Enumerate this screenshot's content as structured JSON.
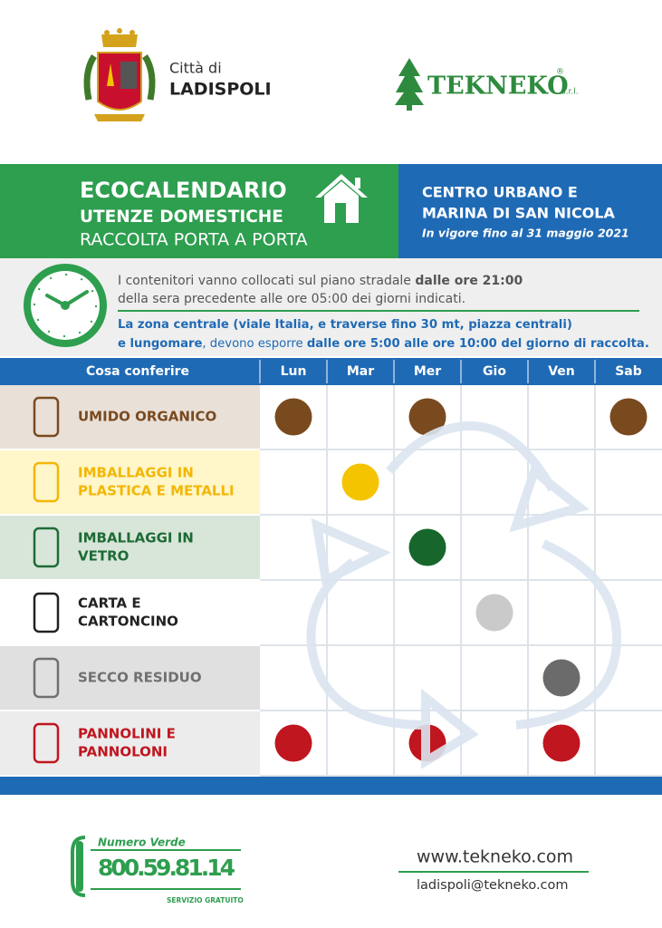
{
  "header": {
    "city_prefix": "Città di",
    "city": "LADISPOLI",
    "brand": "TEKNEKO",
    "registered": "®",
    "brand_suffix": "s.r.l."
  },
  "banner": {
    "title": "ECOCALENDARIO",
    "subtitle": "UTENZE DOMESTICHE",
    "subtitle2": "RACCOLTA PORTA A PORTA",
    "area_lines": [
      "CENTRO URBANO E",
      "MARINA DI SAN NICOLA"
    ],
    "validity": "In vigore fino al 31 maggio 2021"
  },
  "notice": {
    "paragraphs": [
      {
        "color": "#555555",
        "lines": [
          [
            {
              "text": "I contenitori vanno collocati sul piano stradale ",
              "bold": false
            },
            {
              "text": "dalle ore 21:00",
              "bold": true
            }
          ],
          [
            {
              "text": "della sera precedente alle ore 05:00 dei giorni indicati.",
              "bold": false
            }
          ]
        ]
      },
      {
        "color": "#1f6ab5",
        "lines": [
          [
            {
              "text": "La zona centrale (viale Italia, e traverse fino 30 mt, piazza centrali)",
              "bold": true
            }
          ],
          [
            {
              "text": "e lungomare",
              "bold": true
            },
            {
              "text": ", devono esporre ",
              "bold": false
            },
            {
              "text": "dalle ore 5:00 alle ore 10:00 del giorno di raccolta.",
              "bold": true
            }
          ]
        ]
      }
    ]
  },
  "table": {
    "header": "Cosa conferire",
    "days": [
      "Lun",
      "Mar",
      "Mer",
      "Gio",
      "Ven",
      "Sab"
    ],
    "rows": [
      {
        "label_lines": [
          "UMIDO ORGANICO"
        ],
        "bg": "#e9e0d8",
        "color": "#7a4a1f",
        "dot": "#7a4a1f",
        "days": [
          true,
          false,
          true,
          false,
          false,
          true
        ]
      },
      {
        "label_lines": [
          "IMBALLAGGI IN",
          "PLASTICA E METALLI"
        ],
        "bg": "#fff6c9",
        "color": "#f2b705",
        "dot": "#f5c400",
        "days": [
          false,
          true,
          false,
          false,
          false,
          false
        ]
      },
      {
        "label_lines": [
          "IMBALLAGGI IN",
          "VETRO"
        ],
        "bg": "#d8e6da",
        "color": "#1e6b35",
        "dot": "#17672c",
        "days": [
          false,
          false,
          true,
          false,
          false,
          false
        ]
      },
      {
        "label_lines": [
          "CARTA E",
          "CARTONCINO"
        ],
        "bg": "#ffffff",
        "color": "#222222",
        "dot": "#cacaca",
        "days": [
          false,
          false,
          false,
          true,
          false,
          false
        ]
      },
      {
        "label_lines": [
          "SECCO RESIDUO"
        ],
        "bg": "#e0e0e0",
        "color": "#707070",
        "dot": "#6b6b6b",
        "days": [
          false,
          false,
          false,
          false,
          true,
          false
        ]
      },
      {
        "label_lines": [
          "PANNOLINI E",
          "PANNOLONI"
        ],
        "bg": "#ececec",
        "color": "#c0161f",
        "dot": "#c0161f",
        "days": [
          true,
          false,
          true,
          false,
          true,
          false
        ]
      }
    ]
  },
  "footer": {
    "phone_label": "Numero Verde",
    "phone": "800.59.81.14",
    "phone_note": "SERVIZIO GRATUITO",
    "website": "www.tekneko.com",
    "email": "ladispoli@tekneko.com"
  }
}
